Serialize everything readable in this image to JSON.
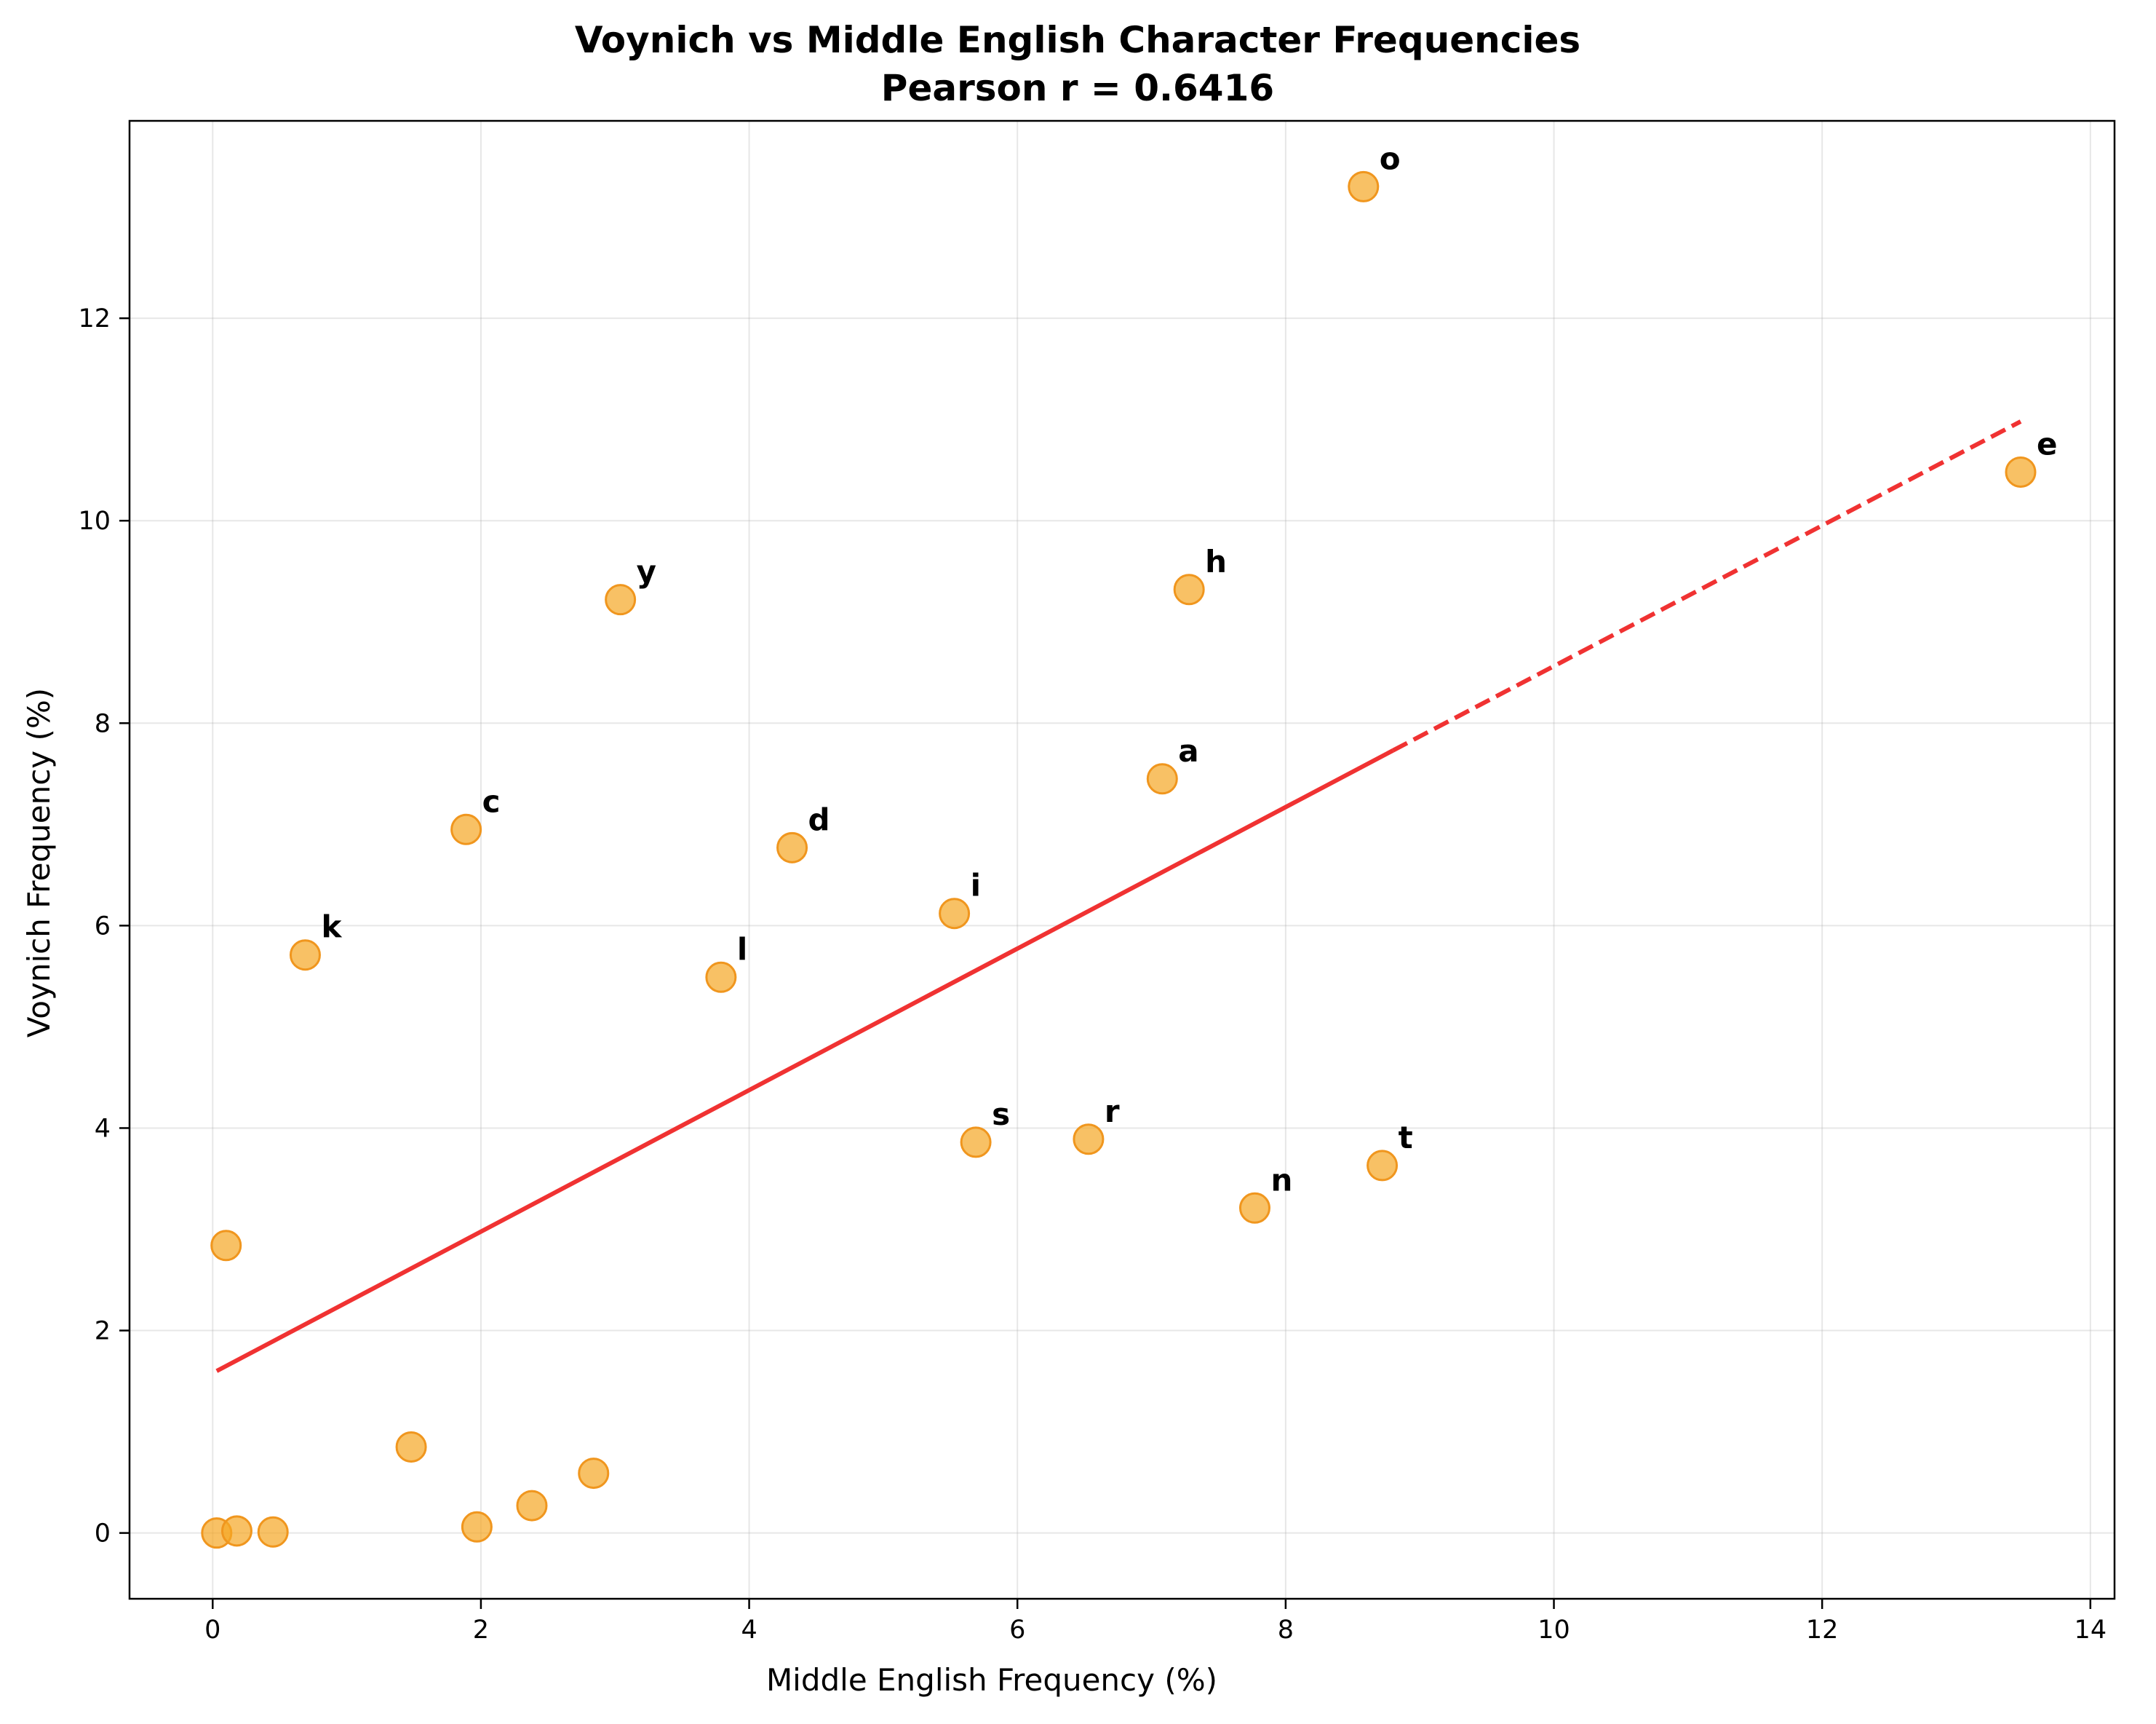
{
  "chart_data": {
    "type": "scatter",
    "title": "Voynich vs Middle English Character Frequencies",
    "subtitle": "Pearson r = 0.6416",
    "xlabel": "Middle English Frequency (%)",
    "ylabel": "Voynich Frequency (%)",
    "xlim": [
      -0.62,
      14.18
    ],
    "ylim": [
      -0.65,
      13.95
    ],
    "xticks": [
      0,
      2,
      4,
      6,
      8,
      10,
      12,
      14
    ],
    "yticks": [
      0,
      2,
      4,
      6,
      8,
      10,
      12
    ],
    "grid": true,
    "colors": {
      "point_fill": "#f5a623",
      "point_edge": "#f0961e",
      "trend": "#f03232"
    },
    "points": [
      {
        "label": "o",
        "x": 8.58,
        "y": 13.3
      },
      {
        "label": "e",
        "x": 13.48,
        "y": 10.48
      },
      {
        "label": "h",
        "x": 7.28,
        "y": 9.32
      },
      {
        "label": "y",
        "x": 3.04,
        "y": 9.22
      },
      {
        "label": "a",
        "x": 7.08,
        "y": 7.45
      },
      {
        "label": "c",
        "x": 1.89,
        "y": 6.95
      },
      {
        "label": "d",
        "x": 4.32,
        "y": 6.77
      },
      {
        "label": "i",
        "x": 5.53,
        "y": 6.12
      },
      {
        "label": "k",
        "x": 0.69,
        "y": 5.71
      },
      {
        "label": "l",
        "x": 3.79,
        "y": 5.49
      },
      {
        "label": "s",
        "x": 5.69,
        "y": 3.86
      },
      {
        "label": "r",
        "x": 6.53,
        "y": 3.89
      },
      {
        "label": "t",
        "x": 8.72,
        "y": 3.63
      },
      {
        "label": "n",
        "x": 7.77,
        "y": 3.21
      },
      {
        "label": "",
        "x": 0.1,
        "y": 2.84
      },
      {
        "label": "",
        "x": 1.48,
        "y": 0.85
      },
      {
        "label": "",
        "x": 2.84,
        "y": 0.59
      },
      {
        "label": "",
        "x": 2.38,
        "y": 0.27
      },
      {
        "label": "",
        "x": 1.97,
        "y": 0.06
      },
      {
        "label": "",
        "x": 0.03,
        "y": 0.0
      },
      {
        "label": "",
        "x": 0.18,
        "y": 0.02
      },
      {
        "label": "",
        "x": 0.45,
        "y": 0.01
      }
    ],
    "trend_line": {
      "solid": [
        [
          0.03,
          1.6
        ],
        [
          8.8,
          7.73
        ]
      ],
      "dashed": [
        [
          8.8,
          7.73
        ],
        [
          13.48,
          10.98
        ]
      ]
    }
  }
}
